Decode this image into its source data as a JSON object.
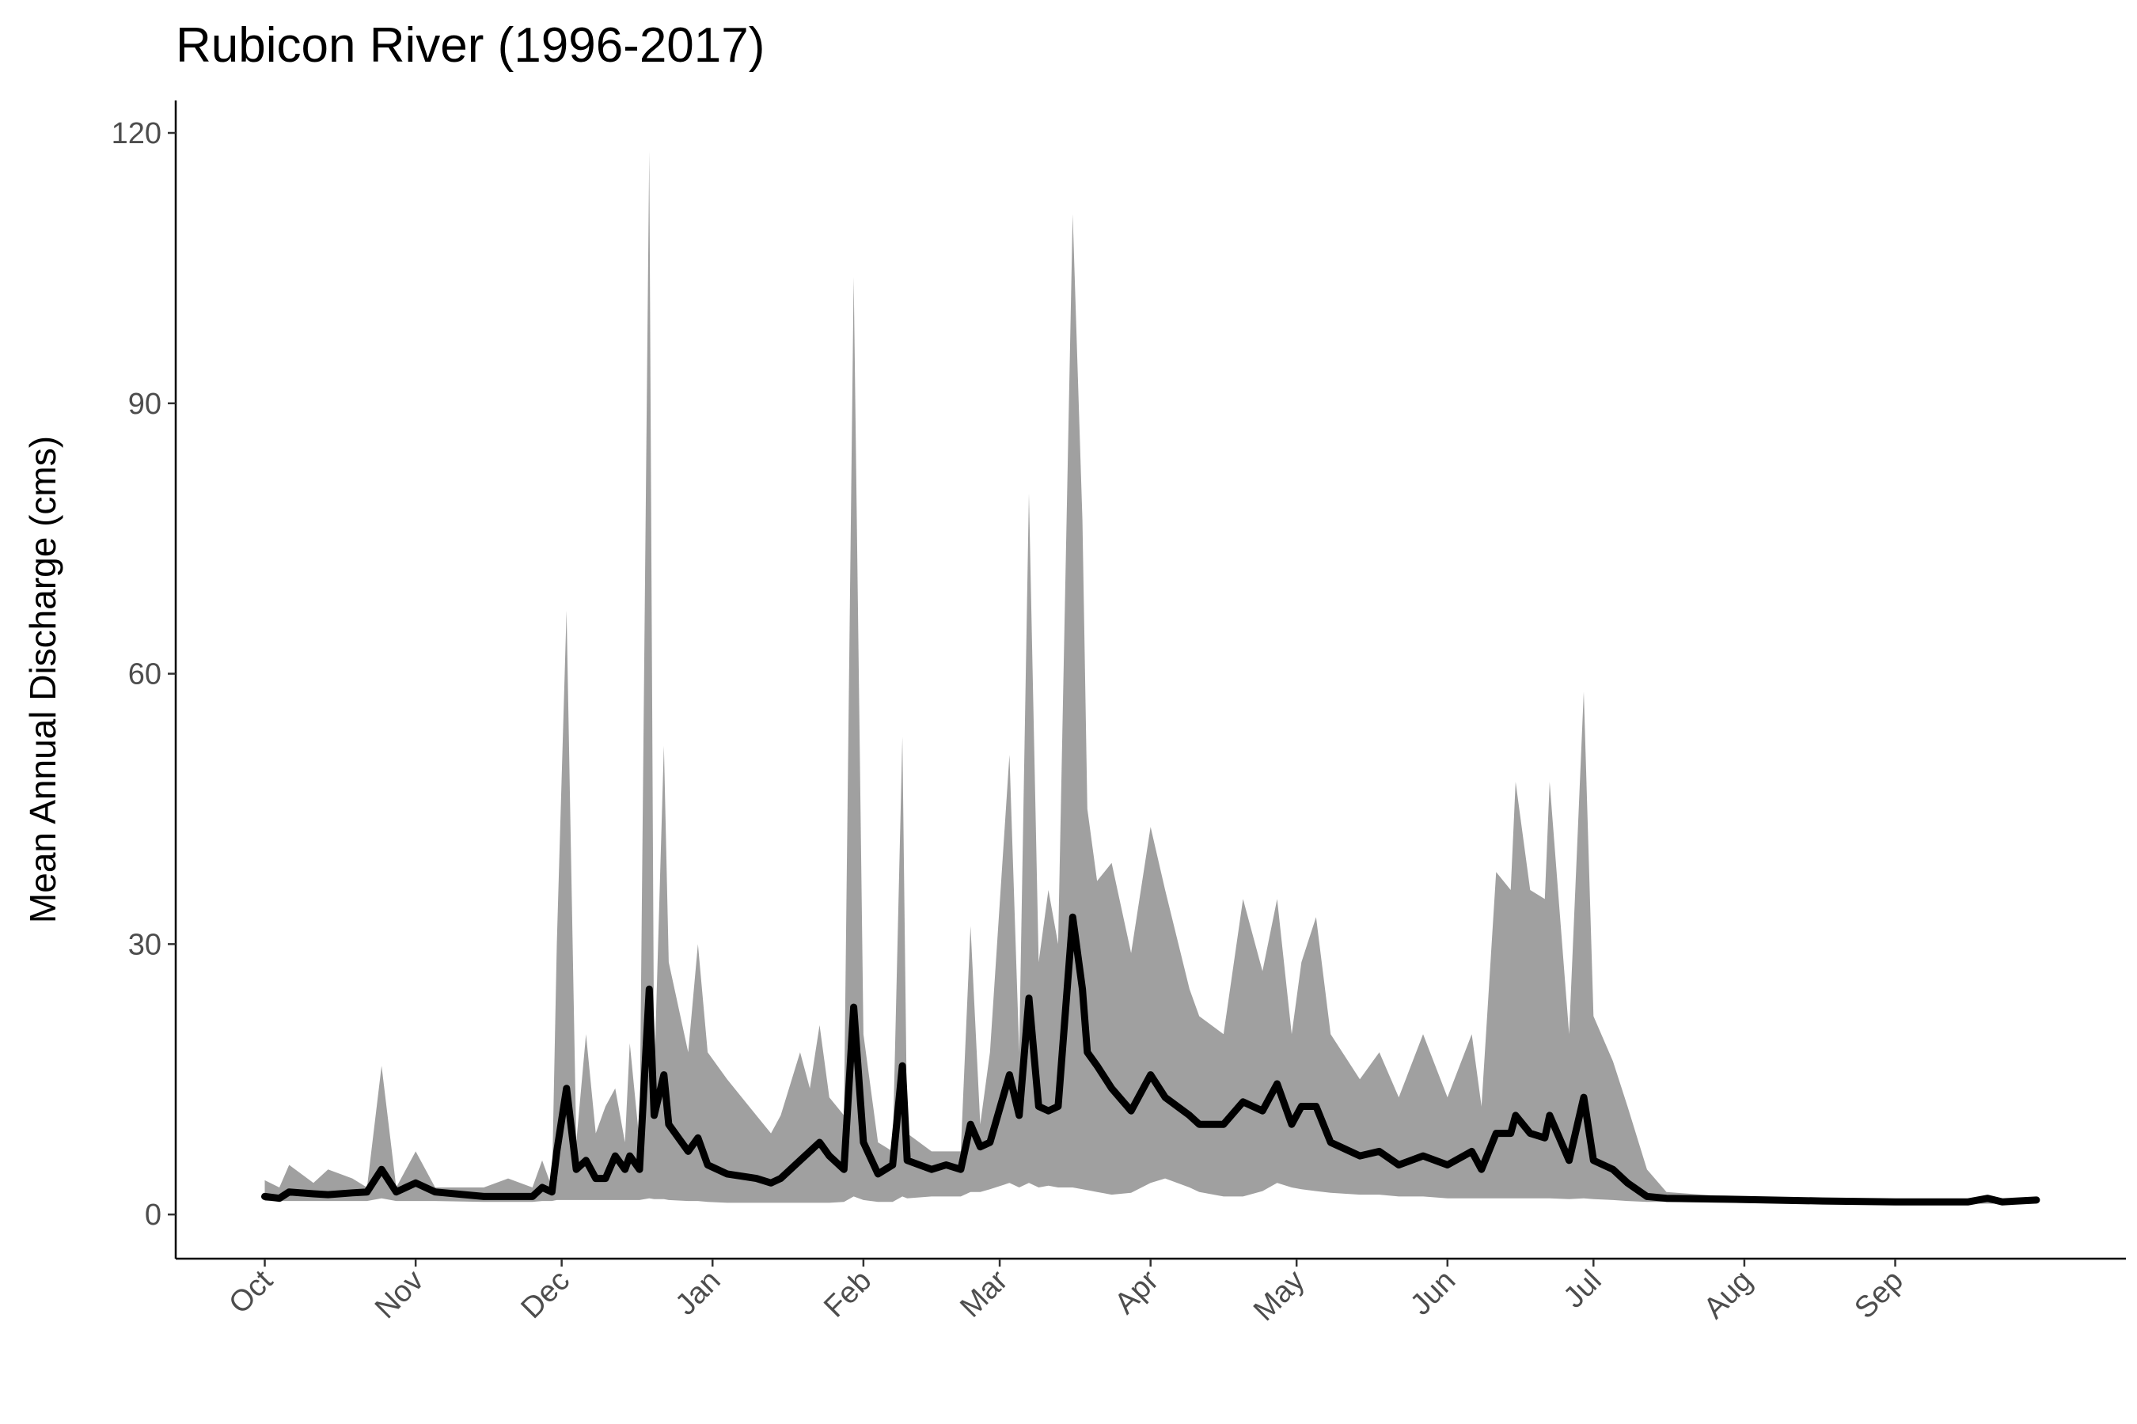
{
  "chart_data": {
    "type": "line",
    "title": "Rubicon River (1996-2017)",
    "y_label": "Mean Annual Discharge (cms)",
    "x": [
      0,
      3,
      5,
      10,
      13,
      18,
      21,
      24,
      27,
      31,
      35,
      45,
      50,
      55,
      57,
      59,
      60,
      62,
      64,
      66,
      68,
      70,
      72,
      74,
      75,
      77,
      79,
      80,
      82,
      83,
      87,
      89,
      91,
      95,
      101,
      104,
      106,
      110,
      112,
      114,
      116,
      119,
      121,
      123,
      126,
      129,
      131,
      132,
      137,
      140,
      143,
      145,
      147,
      149,
      153,
      155,
      157,
      159,
      161,
      163,
      166,
      168,
      169,
      171,
      174,
      178,
      182,
      185,
      190,
      192,
      197,
      201,
      205,
      208,
      211,
      213,
      216,
      219,
      225,
      229,
      233,
      238,
      243,
      248,
      250,
      253,
      256,
      257,
      260,
      263,
      264,
      268,
      271,
      273,
      277,
      280,
      284,
      288,
      300,
      320,
      335,
      350,
      354,
      357,
      364
    ],
    "values": [
      2,
      1.8,
      2.5,
      2.3,
      2.2,
      2.4,
      2.5,
      5,
      2.5,
      3.5,
      2.5,
      2,
      2,
      2,
      3,
      2.5,
      7,
      14,
      5,
      6,
      4,
      4,
      6.5,
      5,
      6.5,
      5,
      25,
      11,
      15.5,
      10,
      7,
      8.5,
      5.5,
      4.5,
      4,
      3.5,
      4,
      6,
      7,
      8,
      6.5,
      5,
      23,
      8,
      4.5,
      5.5,
      16.5,
      6,
      5,
      5.5,
      5,
      10,
      7.5,
      8,
      15.5,
      11,
      24,
      12,
      11.5,
      12,
      33,
      25,
      18,
      16.5,
      14,
      11.5,
      15.5,
      13,
      11,
      10,
      10,
      12.5,
      11.5,
      14.5,
      10,
      12,
      12,
      8,
      6.5,
      7,
      5.5,
      6.5,
      5.5,
      7,
      5,
      9,
      9,
      11,
      9,
      8.5,
      11,
      6,
      13,
      6,
      5,
      3.5,
      2,
      1.8,
      1.7,
      1.5,
      1.4,
      1.4,
      1.8,
      1.4,
      1.6
    ],
    "band_lower": [
      1.5,
      1.5,
      1.5,
      1.5,
      1.5,
      1.5,
      1.5,
      1.8,
      1.5,
      1.5,
      1.5,
      1.4,
      1.4,
      1.4,
      1.5,
      1.5,
      1.6,
      1.6,
      1.6,
      1.6,
      1.6,
      1.6,
      1.6,
      1.6,
      1.6,
      1.6,
      1.8,
      1.7,
      1.7,
      1.6,
      1.5,
      1.5,
      1.4,
      1.3,
      1.3,
      1.3,
      1.3,
      1.3,
      1.3,
      1.3,
      1.3,
      1.4,
      2,
      1.6,
      1.4,
      1.4,
      2,
      1.8,
      2,
      2,
      2,
      2.5,
      2.5,
      2.8,
      3.5,
      3,
      3.5,
      3,
      3.2,
      3,
      3,
      2.8,
      2.7,
      2.5,
      2.2,
      2.4,
      3.5,
      4,
      3,
      2.5,
      2,
      2,
      2.6,
      3.5,
      3,
      2.8,
      2.6,
      2.4,
      2.2,
      2.2,
      2,
      2,
      1.8,
      1.8,
      1.8,
      1.8,
      1.8,
      1.8,
      1.8,
      1.8,
      1.8,
      1.7,
      1.8,
      1.7,
      1.6,
      1.5,
      1.4,
      1.4,
      1.3,
      1.2,
      1.2,
      1.2,
      1.2,
      1.2,
      1.2
    ],
    "band_upper": [
      3.8,
      3,
      5.5,
      3.5,
      5,
      4,
      3,
      16.5,
      3,
      7,
      3,
      3,
      4,
      3,
      6,
      3,
      30,
      67,
      8,
      20,
      9,
      12,
      14,
      8,
      19,
      8,
      118,
      15,
      52,
      28,
      18,
      30,
      18,
      15,
      11,
      9,
      11,
      18,
      14,
      21,
      13,
      11,
      104,
      20,
      8,
      7,
      53,
      9,
      7,
      7,
      7,
      32,
      10,
      18,
      51,
      18,
      80,
      28,
      36,
      30,
      111,
      77,
      45,
      37,
      39,
      29,
      43,
      36,
      25,
      22,
      20,
      35,
      27,
      35,
      20,
      28,
      33,
      20,
      15,
      18,
      13,
      20,
      13,
      20,
      12,
      38,
      36,
      48,
      36,
      35,
      48,
      20,
      58,
      22,
      17,
      12,
      5,
      2.5,
      2,
      1.8,
      1.6,
      1.6,
      2,
      1.6,
      1.8
    ],
    "line_color": "#000000",
    "band_color": "#a0a0a0",
    "xlim": [
      -18.3,
      382.4
    ],
    "ylim": [
      -4.9,
      123.6
    ],
    "xticks": [
      {
        "value": 0,
        "label": "Oct"
      },
      {
        "value": 31,
        "label": "Nov"
      },
      {
        "value": 61,
        "label": "Dec"
      },
      {
        "value": 92,
        "label": "Jan"
      },
      {
        "value": 123,
        "label": "Feb"
      },
      {
        "value": 151,
        "label": "Mar"
      },
      {
        "value": 182,
        "label": "Apr"
      },
      {
        "value": 212,
        "label": "May"
      },
      {
        "value": 243,
        "label": "Jun"
      },
      {
        "value": 273,
        "label": "Jul"
      },
      {
        "value": 304,
        "label": "Aug"
      },
      {
        "value": 335,
        "label": "Sep"
      }
    ],
    "yticks": [
      0,
      30,
      60,
      90,
      120
    ],
    "grid": false
  }
}
